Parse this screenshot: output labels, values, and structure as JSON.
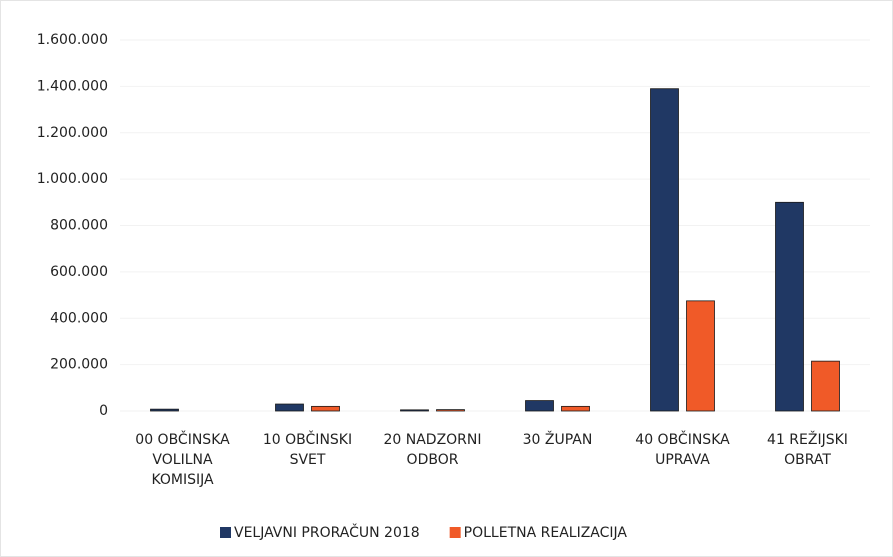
{
  "chart_data": {
    "type": "bar",
    "categories": [
      "00 OBČINSKA\nVOLILNA\nKOMISIJA",
      "10 OBČINSKI\nSVET",
      "20 NADZORNI\nODBOR",
      "30 ŽUPAN",
      "40 OBČINSKA\nUPRAVA",
      "41 REŽIJSKI\nOBRAT"
    ],
    "series": [
      {
        "name": "VELJAVNI PRORAČUN 2018",
        "color": "#203864",
        "values": [
          8000,
          30000,
          5000,
          45000,
          1390000,
          900000
        ]
      },
      {
        "name": "POLLETNA REALIZACIJA",
        "color": "#f05a28",
        "values": [
          0,
          20000,
          6000,
          20000,
          475000,
          215000
        ]
      }
    ],
    "ylim": [
      0,
      1600000
    ],
    "yticks": [
      0,
      {
        "value": 200000,
        "label": "200.000"
      },
      {
        "value": 400000,
        "label": "400.000"
      },
      {
        "value": 600000,
        "label": "600.000"
      },
      {
        "value": 800000,
        "label": "800.000"
      },
      {
        "value": 1000000,
        "label": "1.000.000"
      },
      {
        "value": 1200000,
        "label": "1.200.000"
      },
      {
        "value": 1400000,
        "label": "1.400.000"
      },
      {
        "value": 1600000,
        "label": "1.600.000"
      }
    ],
    "grid": true,
    "legend": "bottom"
  }
}
